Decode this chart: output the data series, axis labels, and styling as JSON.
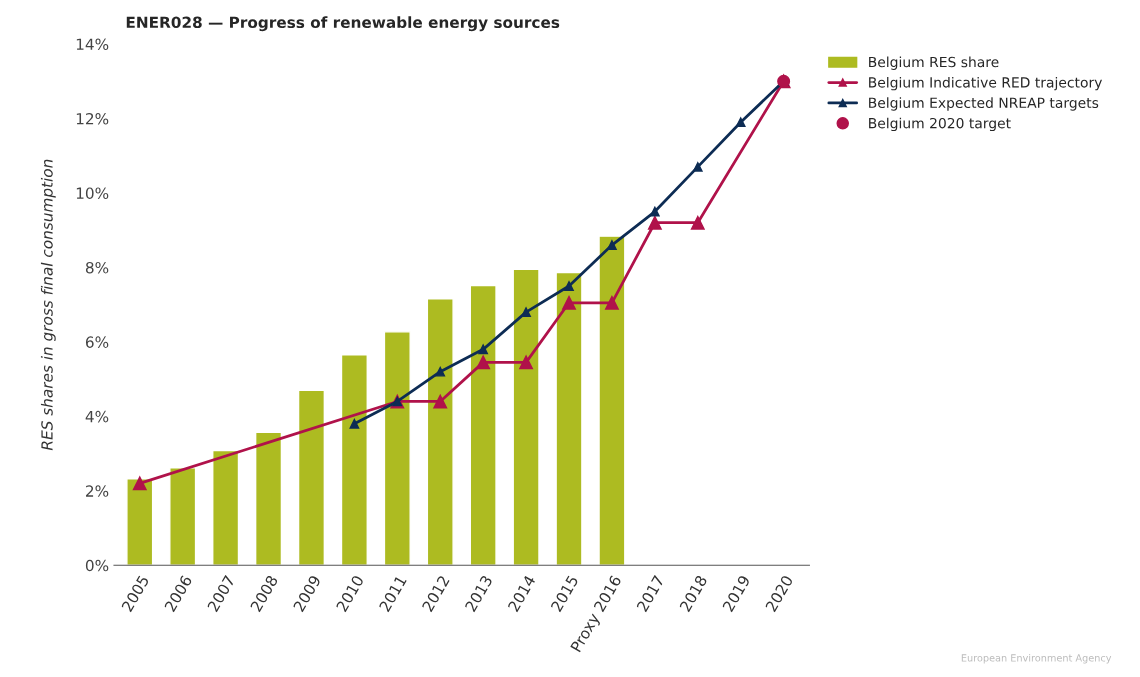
{
  "chart_data": {
    "type": "bar",
    "title": "ENER028 — Progress of renewable energy sources",
    "ylabel": "RES shares in gross final consumption",
    "categories": [
      "2005",
      "2006",
      "2007",
      "2008",
      "2009",
      "2010",
      "2011",
      "2012",
      "2013",
      "2014",
      "2015",
      "Proxy 2016",
      "2017",
      "2018",
      "2019",
      "2020"
    ],
    "series": [
      {
        "name": "Belgium RES share",
        "color": "#adbb21",
        "values": [
          2.32,
          2.62,
          3.08,
          3.57,
          4.7,
          5.65,
          6.27,
          7.16,
          7.51,
          7.95,
          7.86,
          8.84,
          null,
          null,
          null,
          null
        ]
      },
      {
        "name": "Belgium Indicative RED trajectory",
        "type": "line",
        "marker": "triangle",
        "color": "#b0124a",
        "values": [
          2.2,
          null,
          null,
          null,
          null,
          null,
          4.4,
          4.4,
          5.45,
          5.45,
          7.05,
          7.05,
          9.2,
          9.2,
          null,
          13.0
        ]
      },
      {
        "name": "Belgium Expected NREAP targets",
        "type": "line",
        "marker": "triangle",
        "color": "#0d2c54",
        "values": [
          null,
          null,
          null,
          null,
          null,
          3.8,
          4.4,
          5.2,
          5.8,
          6.8,
          7.5,
          8.6,
          9.5,
          10.7,
          11.9,
          13.0
        ]
      },
      {
        "name": "Belgium 2020 target",
        "type": "scatter",
        "marker": "circle",
        "color": "#b0124a",
        "values": [
          null,
          null,
          null,
          null,
          null,
          null,
          null,
          null,
          null,
          null,
          null,
          null,
          null,
          null,
          null,
          13.0
        ]
      }
    ],
    "ylim": [
      0,
      14
    ],
    "yticks": [
      {
        "value": 0,
        "label": "0%"
      },
      {
        "value": 2,
        "label": "2%"
      },
      {
        "value": 4,
        "label": "4%"
      },
      {
        "value": 6,
        "label": "6%"
      },
      {
        "value": 8,
        "label": "8%"
      },
      {
        "value": 10,
        "label": "10%"
      },
      {
        "value": 12,
        "label": "12%"
      },
      {
        "value": 14,
        "label": "14%"
      }
    ],
    "grid": false,
    "legend": "top right",
    "annotations": [
      "European Environment Agency"
    ]
  }
}
